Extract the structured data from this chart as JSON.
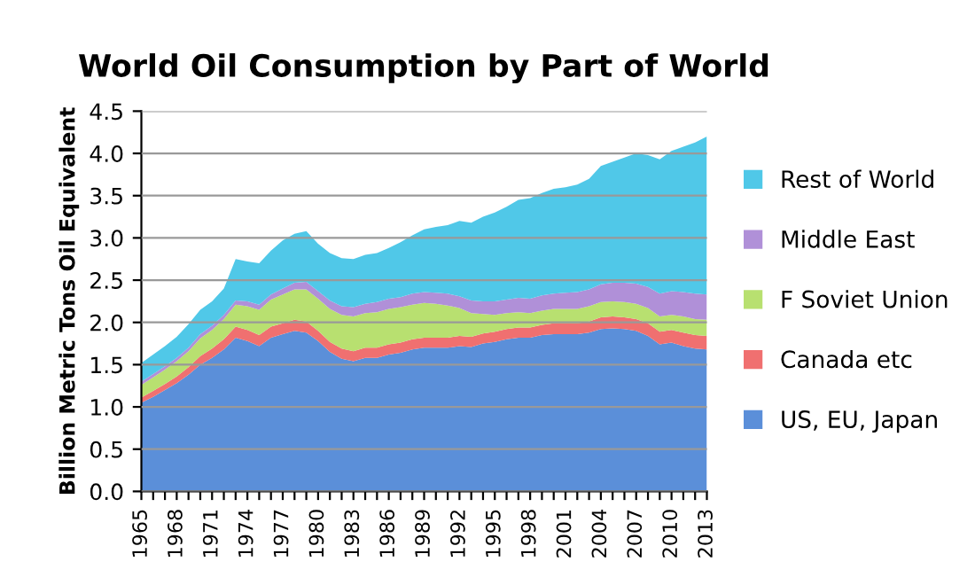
{
  "chart_data": {
    "type": "area",
    "stacked": true,
    "title": "World Oil Consumption by Part of World",
    "ylabel": "Billion Metric Tons Oil Equivalent",
    "categories": [
      "1965",
      null,
      null,
      "1968",
      null,
      null,
      "1971",
      null,
      null,
      "1974",
      null,
      null,
      "1977",
      null,
      null,
      "1980",
      null,
      null,
      "1983",
      null,
      null,
      "1986",
      null,
      null,
      "1989",
      null,
      null,
      "1992",
      null,
      null,
      "1995",
      null,
      null,
      "1998",
      null,
      null,
      "2001",
      null,
      null,
      "2004",
      null,
      null,
      "2007",
      null,
      null,
      "2010",
      null,
      null,
      "2013"
    ],
    "series": [
      {
        "name": "US, EU, Japan",
        "color": "#5b8fd9",
        "values": [
          1.05,
          1.12,
          1.2,
          1.28,
          1.38,
          1.5,
          1.58,
          1.68,
          1.82,
          1.78,
          1.72,
          1.82,
          1.86,
          1.9,
          1.88,
          1.78,
          1.65,
          1.57,
          1.54,
          1.58,
          1.58,
          1.62,
          1.64,
          1.68,
          1.7,
          1.7,
          1.7,
          1.72,
          1.71,
          1.75,
          1.77,
          1.8,
          1.82,
          1.82,
          1.85,
          1.86,
          1.86,
          1.86,
          1.88,
          1.92,
          1.93,
          1.92,
          1.9,
          1.84,
          1.74,
          1.76,
          1.72,
          1.69,
          1.68
        ]
      },
      {
        "name": "Canada etc",
        "color": "#f07070",
        "values": [
          0.06,
          0.07,
          0.07,
          0.08,
          0.09,
          0.1,
          0.11,
          0.12,
          0.13,
          0.13,
          0.13,
          0.13,
          0.13,
          0.13,
          0.13,
          0.12,
          0.12,
          0.12,
          0.12,
          0.12,
          0.12,
          0.12,
          0.12,
          0.12,
          0.12,
          0.12,
          0.12,
          0.12,
          0.12,
          0.12,
          0.12,
          0.12,
          0.12,
          0.12,
          0.12,
          0.13,
          0.13,
          0.13,
          0.13,
          0.14,
          0.14,
          0.14,
          0.14,
          0.15,
          0.15,
          0.15,
          0.16,
          0.16,
          0.16
        ]
      },
      {
        "name": "F Soviet Union",
        "color": "#b8e070",
        "values": [
          0.15,
          0.16,
          0.17,
          0.18,
          0.19,
          0.21,
          0.22,
          0.24,
          0.26,
          0.28,
          0.3,
          0.32,
          0.34,
          0.36,
          0.38,
          0.38,
          0.39,
          0.4,
          0.41,
          0.41,
          0.42,
          0.42,
          0.42,
          0.41,
          0.41,
          0.4,
          0.38,
          0.33,
          0.28,
          0.23,
          0.2,
          0.19,
          0.18,
          0.17,
          0.17,
          0.17,
          0.17,
          0.17,
          0.18,
          0.18,
          0.18,
          0.18,
          0.18,
          0.18,
          0.18,
          0.18,
          0.19,
          0.19,
          0.19
        ]
      },
      {
        "name": "Middle East",
        "color": "#b090d8",
        "values": [
          0.04,
          0.04,
          0.04,
          0.04,
          0.04,
          0.05,
          0.05,
          0.05,
          0.05,
          0.06,
          0.06,
          0.06,
          0.07,
          0.08,
          0.09,
          0.09,
          0.1,
          0.1,
          0.11,
          0.11,
          0.12,
          0.12,
          0.12,
          0.13,
          0.13,
          0.13,
          0.14,
          0.14,
          0.15,
          0.15,
          0.16,
          0.16,
          0.17,
          0.17,
          0.18,
          0.18,
          0.19,
          0.2,
          0.2,
          0.21,
          0.22,
          0.23,
          0.24,
          0.25,
          0.27,
          0.28,
          0.29,
          0.3,
          0.3
        ]
      },
      {
        "name": "Rest of World",
        "color": "#50c8e8",
        "values": [
          0.22,
          0.23,
          0.24,
          0.25,
          0.28,
          0.29,
          0.29,
          0.31,
          0.49,
          0.47,
          0.49,
          0.52,
          0.57,
          0.58,
          0.6,
          0.56,
          0.56,
          0.57,
          0.57,
          0.58,
          0.58,
          0.6,
          0.65,
          0.69,
          0.74,
          0.78,
          0.81,
          0.89,
          0.92,
          1.0,
          1.05,
          1.1,
          1.16,
          1.19,
          1.21,
          1.24,
          1.25,
          1.27,
          1.31,
          1.4,
          1.43,
          1.48,
          1.54,
          1.56,
          1.59,
          1.66,
          1.72,
          1.79,
          1.87
        ]
      }
    ],
    "ylim": [
      0,
      4.5
    ],
    "yticks": [
      {
        "value": 0,
        "label": "0.0"
      },
      {
        "value": 0.5,
        "label": "0.5"
      },
      {
        "value": 1,
        "label": "1.0"
      },
      {
        "value": 1.5,
        "label": "1.5"
      },
      {
        "value": 2,
        "label": "2.0"
      },
      {
        "value": 2.5,
        "label": "2.5"
      },
      {
        "value": 3,
        "label": "3.0"
      },
      {
        "value": 3.5,
        "label": "3.5"
      },
      {
        "value": 4,
        "label": "4.0"
      },
      {
        "value": 4.5,
        "label": "4.5"
      }
    ],
    "grid": "y",
    "legend": "right"
  }
}
